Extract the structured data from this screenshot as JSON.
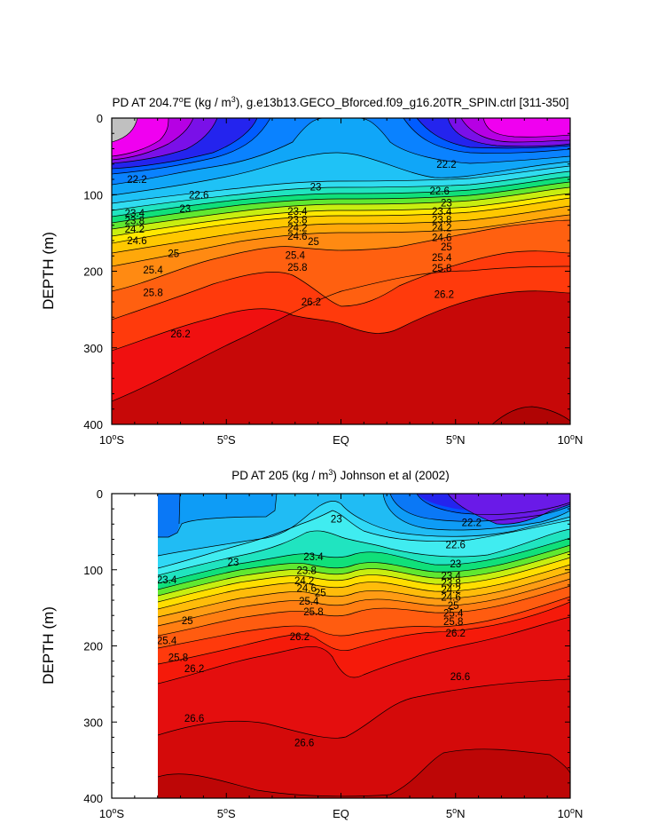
{
  "chart_data": [
    {
      "type": "contour",
      "title_main": "PD AT 204.7",
      "title_deg": "o",
      "title_after": "E (kg / m",
      "title_sup": "3",
      "title_rest": "), g.e13b13.GECO_Bforced.f09_g16.20TR_SPIN.ctrl [311-350]",
      "ylabel": "DEPTH (m)",
      "xlim": [
        -10,
        10
      ],
      "ylim": [
        0,
        400
      ],
      "y_ticks": [
        "0",
        "100",
        "200",
        "300",
        "400"
      ],
      "x_ticks": [
        {
          "value": -10,
          "num": "10",
          "deg": "o",
          "hemi": "S"
        },
        {
          "value": -5,
          "num": "5",
          "deg": "o",
          "hemi": "S"
        },
        {
          "value": 0,
          "num": "EQ",
          "deg": "",
          "hemi": ""
        },
        {
          "value": 5,
          "num": "5",
          "deg": "o",
          "hemi": "N"
        },
        {
          "value": 10,
          "num": "10",
          "deg": "o",
          "hemi": "N"
        }
      ],
      "data_xmin": -10,
      "contour_labels": [
        {
          "text": "22.2",
          "lat": -8.9,
          "depth": 80
        },
        {
          "text": "22.6",
          "lat": -6.2,
          "depth": 100
        },
        {
          "text": "23",
          "lat": -6.8,
          "depth": 118
        },
        {
          "text": "23.4",
          "lat": -9.0,
          "depth": 124
        },
        {
          "text": "23.8",
          "lat": -9.0,
          "depth": 134
        },
        {
          "text": "24.2",
          "lat": -9.0,
          "depth": 145
        },
        {
          "text": "24.6",
          "lat": -8.9,
          "depth": 160
        },
        {
          "text": "25",
          "lat": -7.3,
          "depth": 177
        },
        {
          "text": "25.4",
          "lat": -8.2,
          "depth": 198
        },
        {
          "text": "25.8",
          "lat": -8.2,
          "depth": 228
        },
        {
          "text": "26.2",
          "lat": -7.0,
          "depth": 282
        },
        {
          "text": "23",
          "lat": -1.1,
          "depth": 90
        },
        {
          "text": "23.4",
          "lat": -1.9,
          "depth": 122
        },
        {
          "text": "23.8",
          "lat": -1.9,
          "depth": 133
        },
        {
          "text": "24.2",
          "lat": -1.9,
          "depth": 143
        },
        {
          "text": "24.6",
          "lat": -1.9,
          "depth": 154
        },
        {
          "text": "25",
          "lat": -1.2,
          "depth": 161
        },
        {
          "text": "25.4",
          "lat": -2.0,
          "depth": 179
        },
        {
          "text": "25.8",
          "lat": -1.9,
          "depth": 195
        },
        {
          "text": "26.2",
          "lat": -1.3,
          "depth": 240
        },
        {
          "text": "22.2",
          "lat": 4.6,
          "depth": 60
        },
        {
          "text": "22.6",
          "lat": 4.3,
          "depth": 95
        },
        {
          "text": "23",
          "lat": 4.6,
          "depth": 111
        },
        {
          "text": "23.4",
          "lat": 4.4,
          "depth": 122
        },
        {
          "text": "23.8",
          "lat": 4.4,
          "depth": 133
        },
        {
          "text": "24.2",
          "lat": 4.4,
          "depth": 143
        },
        {
          "text": "24.6",
          "lat": 4.4,
          "depth": 156
        },
        {
          "text": "25",
          "lat": 4.6,
          "depth": 168
        },
        {
          "text": "25.4",
          "lat": 4.4,
          "depth": 182
        },
        {
          "text": "25.8",
          "lat": 4.4,
          "depth": 196
        },
        {
          "text": "26.2",
          "lat": 4.5,
          "depth": 230
        }
      ]
    },
    {
      "type": "contour",
      "title_main": "PD AT 205 (kg / m",
      "title_sup": "3",
      "title_rest": ") Johnson et al (2002)",
      "ylabel": "DEPTH (m)",
      "xlim": [
        -10,
        10
      ],
      "ylim": [
        0,
        400
      ],
      "y_ticks": [
        "0",
        "100",
        "200",
        "300",
        "400"
      ],
      "x_ticks": [
        {
          "value": -10,
          "num": "10",
          "deg": "o",
          "hemi": "S"
        },
        {
          "value": -5,
          "num": "5",
          "deg": "o",
          "hemi": "S"
        },
        {
          "value": 0,
          "num": "EQ",
          "deg": "",
          "hemi": ""
        },
        {
          "value": 5,
          "num": "5",
          "deg": "o",
          "hemi": "N"
        },
        {
          "value": 10,
          "num": "10",
          "deg": "o",
          "hemi": "N"
        }
      ],
      "data_xmin": -8,
      "contour_labels": [
        {
          "text": "22.2",
          "lat": 5.7,
          "depth": 38
        },
        {
          "text": "22.6",
          "lat": 5.0,
          "depth": 67
        },
        {
          "text": "23",
          "lat": -4.7,
          "depth": 90
        },
        {
          "text": "23",
          "lat": -0.2,
          "depth": 33
        },
        {
          "text": "23",
          "lat": 5.0,
          "depth": 92
        },
        {
          "text": "23.4",
          "lat": -7.6,
          "depth": 113
        },
        {
          "text": "23.4",
          "lat": -1.2,
          "depth": 83
        },
        {
          "text": "23.8",
          "lat": -1.5,
          "depth": 101
        },
        {
          "text": "24.2",
          "lat": -1.6,
          "depth": 114
        },
        {
          "text": "24.6",
          "lat": -1.5,
          "depth": 124
        },
        {
          "text": "25",
          "lat": -0.9,
          "depth": 130
        },
        {
          "text": "25.4",
          "lat": -1.4,
          "depth": 141
        },
        {
          "text": "25.8",
          "lat": -1.2,
          "depth": 155
        },
        {
          "text": "26.2",
          "lat": -1.8,
          "depth": 188
        },
        {
          "text": "25",
          "lat": -6.7,
          "depth": 167
        },
        {
          "text": "25.4",
          "lat": -7.6,
          "depth": 193
        },
        {
          "text": "25.8",
          "lat": -7.1,
          "depth": 215
        },
        {
          "text": "26.2",
          "lat": -6.4,
          "depth": 230
        },
        {
          "text": "26.6",
          "lat": -6.4,
          "depth": 295
        },
        {
          "text": "26.6",
          "lat": -1.6,
          "depth": 327
        },
        {
          "text": "26.6",
          "lat": 5.2,
          "depth": 240
        },
        {
          "text": "23.4",
          "lat": 4.8,
          "depth": 108
        },
        {
          "text": "23.8",
          "lat": 4.8,
          "depth": 117
        },
        {
          "text": "24.2",
          "lat": 4.8,
          "depth": 126
        },
        {
          "text": "24.6",
          "lat": 4.8,
          "depth": 136
        },
        {
          "text": "25",
          "lat": 4.9,
          "depth": 147
        },
        {
          "text": "25.4",
          "lat": 4.9,
          "depth": 157
        },
        {
          "text": "25.8",
          "lat": 4.9,
          "depth": 168
        },
        {
          "text": "26.2",
          "lat": 5.0,
          "depth": 183
        }
      ]
    }
  ],
  "colors": {
    "gray": "#c4c4c4",
    "magenta": "#f400f4",
    "purple": "#b800e4",
    "violet": "#7e14e6",
    "blue1": "#2626f0",
    "blue2": "#0050ff",
    "blue3": "#0078ff",
    "blue4": "#0e9cf6",
    "sky": "#20bcf4",
    "cyan1": "#30d8f6",
    "cyan2": "#40ecf0",
    "teal": "#20e8c8",
    "green1": "#00e88a",
    "green2": "#30e050",
    "lime": "#88ee20",
    "yellow1": "#e4ee10",
    "yellow2": "#ffe000",
    "orange1": "#ffbc00",
    "orange2": "#ff9c10",
    "orange3": "#ff7a14",
    "redorange": "#ff5010",
    "red": "#ff1c0a",
    "red2": "#ea0c0c",
    "darkred": "#d00808",
    "darkred2": "#b60606"
  }
}
